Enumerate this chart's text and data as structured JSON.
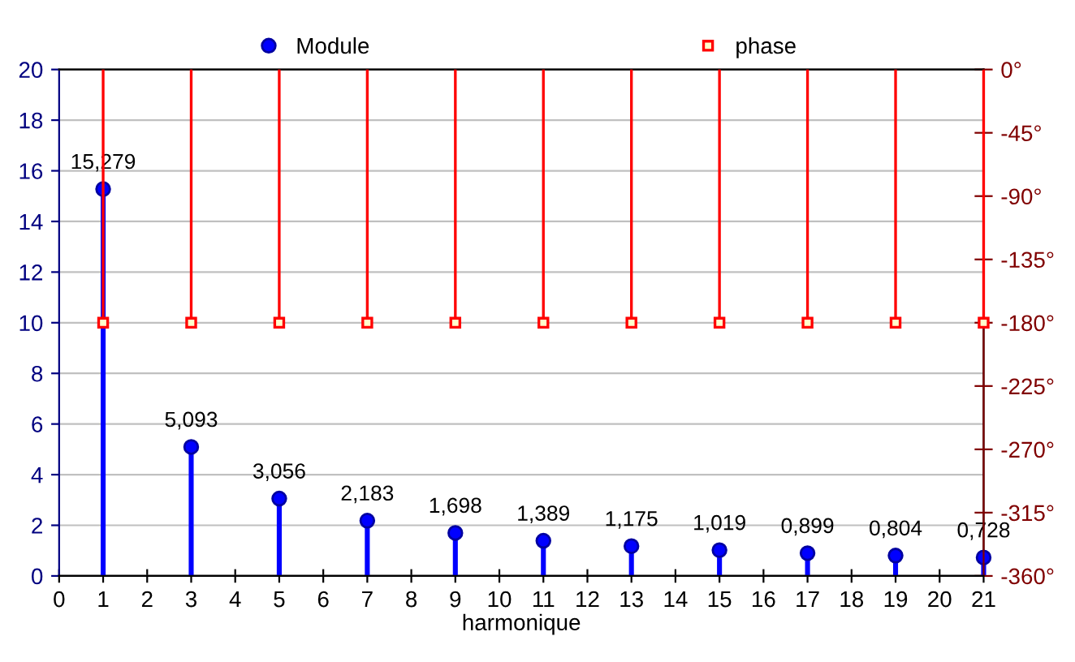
{
  "chart_data": {
    "type": "lollipop",
    "xlabel": "harmonique",
    "x": [
      1,
      3,
      5,
      7,
      9,
      11,
      13,
      15,
      17,
      19,
      21
    ],
    "xlim": [
      0,
      21
    ],
    "xticks": [
      0,
      1,
      2,
      3,
      4,
      5,
      6,
      7,
      8,
      9,
      10,
      11,
      12,
      13,
      14,
      15,
      16,
      17,
      18,
      19,
      20,
      21
    ],
    "ylim": [
      0,
      20
    ],
    "yticks": [
      0,
      2,
      4,
      6,
      8,
      10,
      12,
      14,
      16,
      18,
      20
    ],
    "y2lim": [
      -360,
      0
    ],
    "y2ticks": [
      {
        "value": 0,
        "label": "0°"
      },
      {
        "value": -45,
        "label": "-45°"
      },
      {
        "value": -90,
        "label": "-90°"
      },
      {
        "value": -135,
        "label": "-135°"
      },
      {
        "value": -180,
        "label": "-180°"
      },
      {
        "value": -225,
        "label": "-225°"
      },
      {
        "value": -270,
        "label": "-270°"
      },
      {
        "value": -315,
        "label": "-315°"
      },
      {
        "value": -360,
        "label": "-360°"
      }
    ],
    "grid": "y",
    "legend": "top",
    "series": [
      {
        "name": "Module",
        "color": "#0000ff",
        "marker": "circle",
        "values": [
          15.279,
          5.093,
          3.056,
          2.183,
          1.698,
          1.389,
          1.175,
          1.019,
          0.899,
          0.804,
          0.728
        ],
        "value_labels": [
          "15,279",
          "5,093",
          "3,056",
          "2,183",
          "1,698",
          "1,389",
          "1,175",
          "1,019",
          "0,899",
          "0,804",
          "0,728"
        ]
      },
      {
        "name": "phase",
        "color": "#ff0000",
        "marker": "square",
        "axis": "y2",
        "values": [
          -180,
          -180,
          -180,
          -180,
          -180,
          -180,
          -180,
          -180,
          -180,
          -180,
          -180
        ]
      }
    ]
  }
}
